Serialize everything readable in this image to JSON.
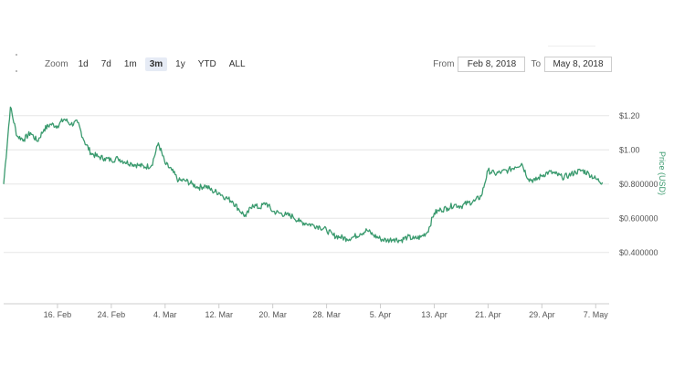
{
  "zoom": {
    "label": "Zoom",
    "options": [
      "1d",
      "7d",
      "1m",
      "3m",
      "1y",
      "YTD",
      "ALL"
    ],
    "active": "3m"
  },
  "range": {
    "from_label": "From",
    "from_value": "Feb 8, 2018",
    "to_label": "To",
    "to_value": "May 8, 2018"
  },
  "colors": {
    "line": "#3a9a6e",
    "axis_label": "#3a9a6e",
    "grid": "#e6e6e6",
    "tick_text": "#555555"
  },
  "chart_data": {
    "type": "line",
    "title": "",
    "xlabel": "",
    "ylabel": "Price (USD)",
    "xlim": [
      "2018-02-08",
      "2018-05-09"
    ],
    "ylim": [
      0.1,
      1.3
    ],
    "grid": true,
    "x_ticks": [
      {
        "date": "2018-02-16",
        "label": "16. Feb"
      },
      {
        "date": "2018-02-24",
        "label": "24. Feb"
      },
      {
        "date": "2018-03-04",
        "label": "4. Mar"
      },
      {
        "date": "2018-03-12",
        "label": "12. Mar"
      },
      {
        "date": "2018-03-20",
        "label": "20. Mar"
      },
      {
        "date": "2018-03-28",
        "label": "28. Mar"
      },
      {
        "date": "2018-04-05",
        "label": "5. Apr"
      },
      {
        "date": "2018-04-13",
        "label": "13. Apr"
      },
      {
        "date": "2018-04-21",
        "label": "21. Apr"
      },
      {
        "date": "2018-04-29",
        "label": "29. Apr"
      },
      {
        "date": "2018-05-07",
        "label": "7. May"
      }
    ],
    "y_ticks": [
      {
        "value": 1.2,
        "label": "$1.20"
      },
      {
        "value": 1.0,
        "label": "$1.00"
      },
      {
        "value": 0.8,
        "label": "$0.800000"
      },
      {
        "value": 0.6,
        "label": "$0.600000"
      },
      {
        "value": 0.4,
        "label": "$0.400000"
      }
    ],
    "series": [
      {
        "x": [
          "2018-02-08",
          "2018-02-09",
          "2018-02-10",
          "2018-02-11",
          "2018-02-12",
          "2018-02-13",
          "2018-02-14",
          "2018-02-15",
          "2018-02-16",
          "2018-02-17",
          "2018-02-18",
          "2018-02-19",
          "2018-02-20",
          "2018-02-21",
          "2018-02-22",
          "2018-02-23",
          "2018-02-24",
          "2018-02-25",
          "2018-02-26",
          "2018-02-27",
          "2018-02-28",
          "2018-03-01",
          "2018-03-02",
          "2018-03-03",
          "2018-03-04",
          "2018-03-05",
          "2018-03-06",
          "2018-03-07",
          "2018-03-08",
          "2018-03-09",
          "2018-03-10",
          "2018-03-11",
          "2018-03-12",
          "2018-03-13",
          "2018-03-14",
          "2018-03-15",
          "2018-03-16",
          "2018-03-17",
          "2018-03-18",
          "2018-03-19",
          "2018-03-20",
          "2018-03-21",
          "2018-03-22",
          "2018-03-23",
          "2018-03-24",
          "2018-03-25",
          "2018-03-26",
          "2018-03-27",
          "2018-03-28",
          "2018-03-29",
          "2018-03-30",
          "2018-03-31",
          "2018-04-01",
          "2018-04-02",
          "2018-04-03",
          "2018-04-04",
          "2018-04-05",
          "2018-04-06",
          "2018-04-07",
          "2018-04-08",
          "2018-04-09",
          "2018-04-10",
          "2018-04-11",
          "2018-04-12",
          "2018-04-13",
          "2018-04-14",
          "2018-04-15",
          "2018-04-16",
          "2018-04-17",
          "2018-04-18",
          "2018-04-19",
          "2018-04-20",
          "2018-04-21",
          "2018-04-22",
          "2018-04-23",
          "2018-04-24",
          "2018-04-25",
          "2018-04-26",
          "2018-04-27",
          "2018-04-28",
          "2018-04-29",
          "2018-04-30",
          "2018-05-01",
          "2018-05-02",
          "2018-05-03",
          "2018-05-04",
          "2018-05-05",
          "2018-05-06",
          "2018-05-07",
          "2018-05-08"
        ],
        "y": [
          0.8,
          1.25,
          1.08,
          1.06,
          1.1,
          1.05,
          1.12,
          1.15,
          1.14,
          1.18,
          1.15,
          1.16,
          1.05,
          0.98,
          0.96,
          0.95,
          0.94,
          0.95,
          0.93,
          0.92,
          0.91,
          0.9,
          0.91,
          1.04,
          0.92,
          0.88,
          0.82,
          0.82,
          0.8,
          0.78,
          0.79,
          0.76,
          0.75,
          0.72,
          0.7,
          0.65,
          0.61,
          0.68,
          0.66,
          0.69,
          0.64,
          0.63,
          0.62,
          0.61,
          0.58,
          0.57,
          0.56,
          0.55,
          0.53,
          0.5,
          0.49,
          0.48,
          0.49,
          0.51,
          0.53,
          0.5,
          0.48,
          0.47,
          0.48,
          0.47,
          0.49,
          0.48,
          0.49,
          0.52,
          0.63,
          0.65,
          0.66,
          0.68,
          0.67,
          0.69,
          0.7,
          0.73,
          0.88,
          0.86,
          0.87,
          0.88,
          0.9,
          0.92,
          0.83,
          0.82,
          0.85,
          0.87,
          0.86,
          0.84,
          0.85,
          0.87,
          0.88,
          0.86,
          0.83,
          0.81
        ]
      }
    ]
  }
}
